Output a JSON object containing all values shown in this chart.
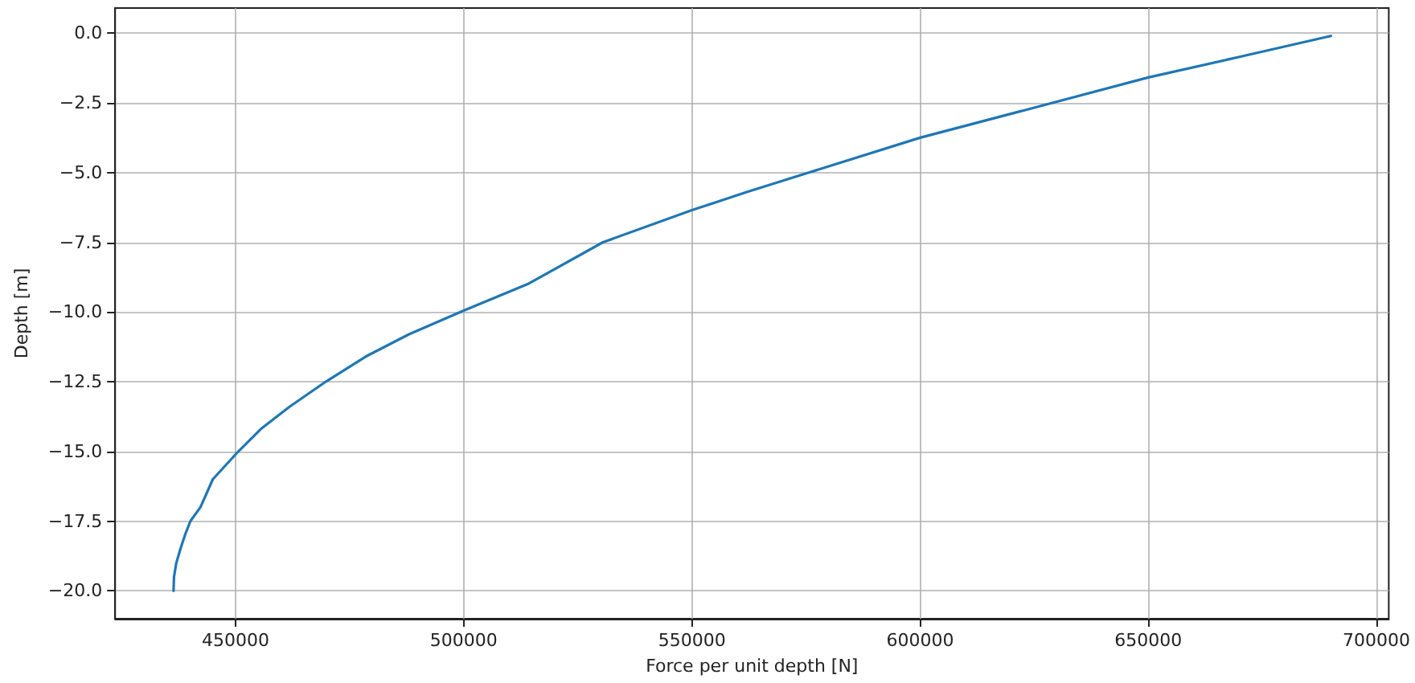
{
  "chart_data": {
    "type": "line",
    "xlabel": "Force per unit depth [N]",
    "ylabel": "Depth [m]",
    "x": [
      436400,
      436500,
      437000,
      437900,
      438900,
      440100,
      442300,
      445000,
      450600,
      455500,
      461800,
      469750,
      478500,
      488000,
      500000,
      514000,
      530500,
      550000,
      562000,
      575600,
      600000,
      629000,
      650000,
      670000,
      690000
    ],
    "series": [
      {
        "color": "#1f77b4",
        "values": [
          -20,
          -19.5,
          -19,
          -18.5,
          -18,
          -17.5,
          -17,
          -16,
          -15,
          -14.2,
          -13.4,
          -12.5,
          -11.6,
          -10.8,
          -9.95,
          -9,
          -7.5,
          -6.35,
          -5.7,
          -5,
          -3.75,
          -2.5,
          -1.59,
          -0.85,
          -0.1
        ]
      }
    ],
    "xlim": [
      423600,
      702700
    ],
    "ylim": [
      -21.0,
      0.9
    ],
    "xticks": [
      450000,
      500000,
      550000,
      600000,
      650000,
      700000
    ],
    "yticks": [
      {
        "value": 0,
        "label": "0.0"
      },
      {
        "value": -2.5,
        "label": "−2.5"
      },
      {
        "value": -5,
        "label": "−5.0"
      },
      {
        "value": -7.5,
        "label": "−7.5"
      },
      {
        "value": -10,
        "label": "−10.0"
      },
      {
        "value": -12.5,
        "label": "−12.5"
      },
      {
        "value": -15,
        "label": "−15.0"
      },
      {
        "value": -17.5,
        "label": "−17.5"
      },
      {
        "value": -20,
        "label": "−20.0"
      }
    ],
    "grid": true,
    "marker": "none",
    "line_style": "solid"
  }
}
